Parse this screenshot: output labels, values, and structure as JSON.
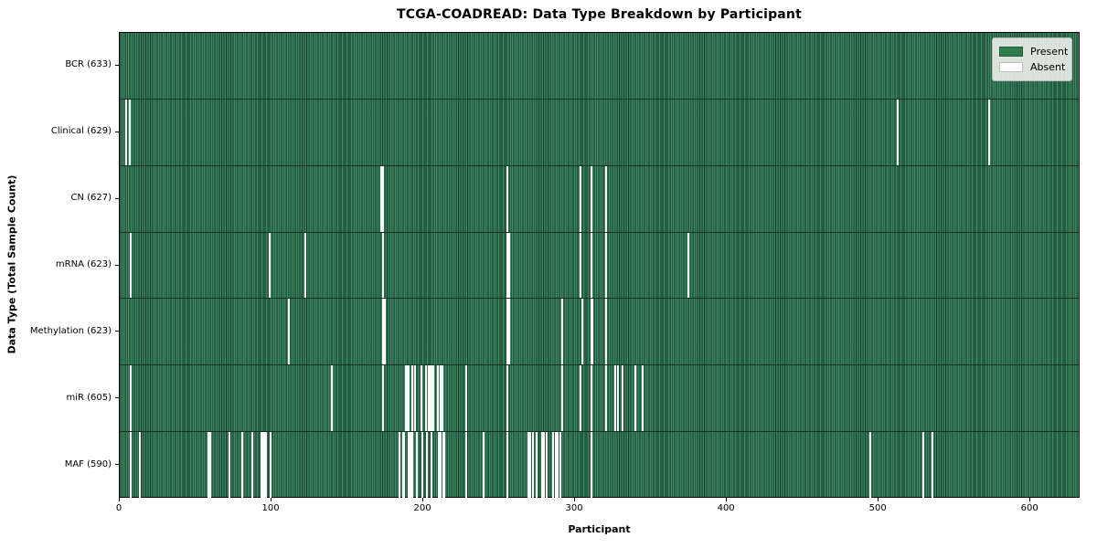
{
  "chart_data": {
    "type": "heatmap",
    "title": "TCGA-COADREAD: Data Type Breakdown by Participant",
    "xlabel": "Participant",
    "ylabel": "Data Type (Total Sample Count)",
    "n_participants": 633,
    "x_ticks": [
      0,
      100,
      200,
      300,
      400,
      500,
      600
    ],
    "x_range": [
      0,
      633
    ],
    "grid": false,
    "legend_position": "upper right",
    "colors": {
      "present": "#2e7d4f",
      "absent": "#ffffff"
    },
    "legend": [
      {
        "label": "Present",
        "color": "#2e7d4f"
      },
      {
        "label": "Absent",
        "color": "#ffffff"
      }
    ],
    "rows": [
      {
        "label": "BCR (633)",
        "name": "BCR",
        "present_count": 633,
        "absent": []
      },
      {
        "label": "Clinical (629)",
        "name": "Clinical",
        "present_count": 629,
        "absent": [
          4,
          6,
          512,
          572
        ]
      },
      {
        "label": "CN (627)",
        "name": "CN",
        "present_count": 627,
        "absent": [
          172,
          173,
          255,
          303,
          310,
          320
        ]
      },
      {
        "label": "mRNA (623)",
        "name": "mRNA",
        "present_count": 623,
        "absent": [
          7,
          98,
          122,
          173,
          255,
          256,
          303,
          310,
          320,
          374
        ]
      },
      {
        "label": "Methylation (623)",
        "name": "Methylation",
        "present_count": 623,
        "absent": [
          111,
          173,
          174,
          255,
          256,
          291,
          304,
          310,
          311,
          320
        ]
      },
      {
        "label": "miR (605)",
        "name": "miR",
        "present_count": 605,
        "absent": [
          7,
          139,
          173,
          188,
          189,
          190,
          192,
          194,
          198,
          201,
          203,
          204,
          205,
          206,
          209,
          211,
          212,
          228,
          255,
          291,
          303,
          310,
          320,
          326,
          328,
          331,
          339,
          344
        ]
      },
      {
        "label": "MAF (590)",
        "name": "MAF",
        "present_count": 590,
        "absent": [
          7,
          13,
          58,
          59,
          72,
          80,
          87,
          93,
          94,
          95,
          96,
          99,
          184,
          186,
          187,
          190,
          191,
          192,
          195,
          199,
          202,
          205,
          210,
          211,
          213,
          228,
          239,
          255,
          269,
          270,
          272,
          274,
          278,
          279,
          281,
          285,
          287,
          288,
          290,
          310,
          494,
          529,
          535
        ]
      }
    ]
  }
}
